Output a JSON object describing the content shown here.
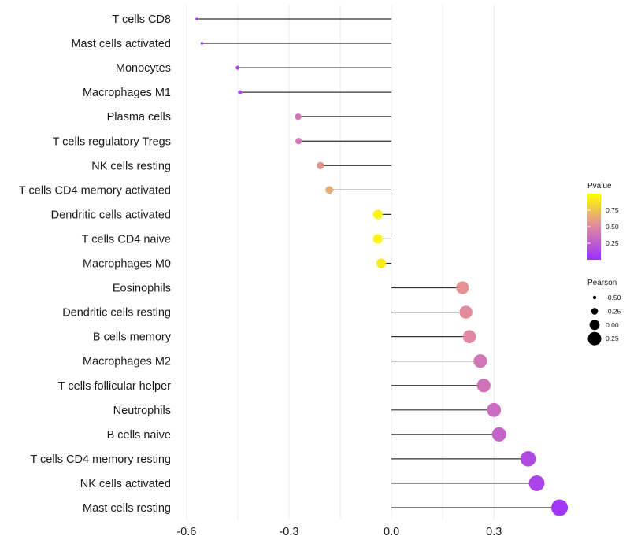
{
  "chart_data": {
    "type": "lollipop",
    "title": "",
    "xlabel": "",
    "ylabel": "",
    "xlim": [
      -0.61,
      0.5
    ],
    "x_ticks": [
      -0.6,
      -0.3,
      0.0,
      0.3
    ],
    "x_tick_labels": [
      "-0.6",
      "-0.3",
      "0.0",
      "0.3"
    ],
    "categories": [
      "T cells CD8",
      "Mast cells activated",
      "Monocytes",
      "Macrophages M1",
      "Plasma cells",
      "T cells regulatory  Tregs ",
      "NK cells resting",
      "T cells CD4 memory activated",
      "Dendritic cells activated",
      "T cells CD4 naive",
      "Macrophages M0",
      "Eosinophils",
      "Dendritic cells resting",
      "B cells memory",
      "Macrophages M2",
      "T cells follicular helper",
      "Neutrophils",
      "B cells naive",
      "T cells CD4 memory resting",
      "NK cells activated",
      "Mast cells resting"
    ],
    "pearson": [
      -0.57,
      -0.555,
      -0.45,
      -0.443,
      -0.273,
      -0.272,
      -0.208,
      -0.182,
      -0.04,
      -0.04,
      -0.03,
      0.208,
      0.218,
      0.228,
      0.26,
      0.27,
      0.3,
      0.315,
      0.4,
      0.425,
      0.492
    ],
    "pvalue": [
      0.02,
      0.03,
      0.12,
      0.15,
      0.4,
      0.4,
      0.55,
      0.65,
      0.95,
      0.95,
      0.92,
      0.55,
      0.52,
      0.5,
      0.4,
      0.38,
      0.35,
      0.3,
      0.15,
      0.12,
      0.04
    ],
    "color_scale": {
      "low": "#9b30ff",
      "mid": "#e087a2",
      "high": "#ffff00",
      "domain": [
        0.0,
        1.0
      ]
    },
    "segment_color": "#333333",
    "legend": {
      "color_title": "Pvalue",
      "color_breaks": [
        0.75,
        0.5,
        0.25
      ],
      "color_labels": [
        "0.75",
        "0.50",
        "0.25"
      ],
      "size_title": "Pearson",
      "size_breaks": [
        -0.5,
        -0.25,
        0.0,
        0.25
      ],
      "size_labels": [
        "-0.50",
        "-0.25",
        "0.00",
        "0.25"
      ]
    }
  }
}
